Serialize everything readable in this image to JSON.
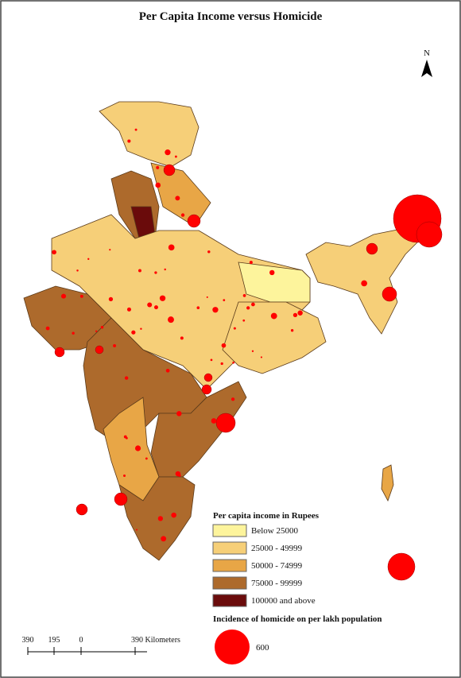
{
  "title": "Per Capita Income versus Homicide",
  "north": "N",
  "income_legend": {
    "title": "Per capita income in Rupees",
    "items": [
      {
        "label": "Below 25000",
        "color": "#fdf49c"
      },
      {
        "label": "25000 - 49999",
        "color": "#f6cf78"
      },
      {
        "label": "50000 - 74999",
        "color": "#e8a646"
      },
      {
        "label": "75000 - 99999",
        "color": "#ad6a2c"
      },
      {
        "label": "100000 and above",
        "color": "#6a0b0b"
      }
    ]
  },
  "homicide_legend": {
    "title": "Incidence of homicide on per lakh population",
    "label": "600",
    "color": "#ff0000"
  },
  "scale_bar": {
    "labels": [
      "390",
      "195",
      "0",
      "390 Kilometers"
    ]
  }
}
